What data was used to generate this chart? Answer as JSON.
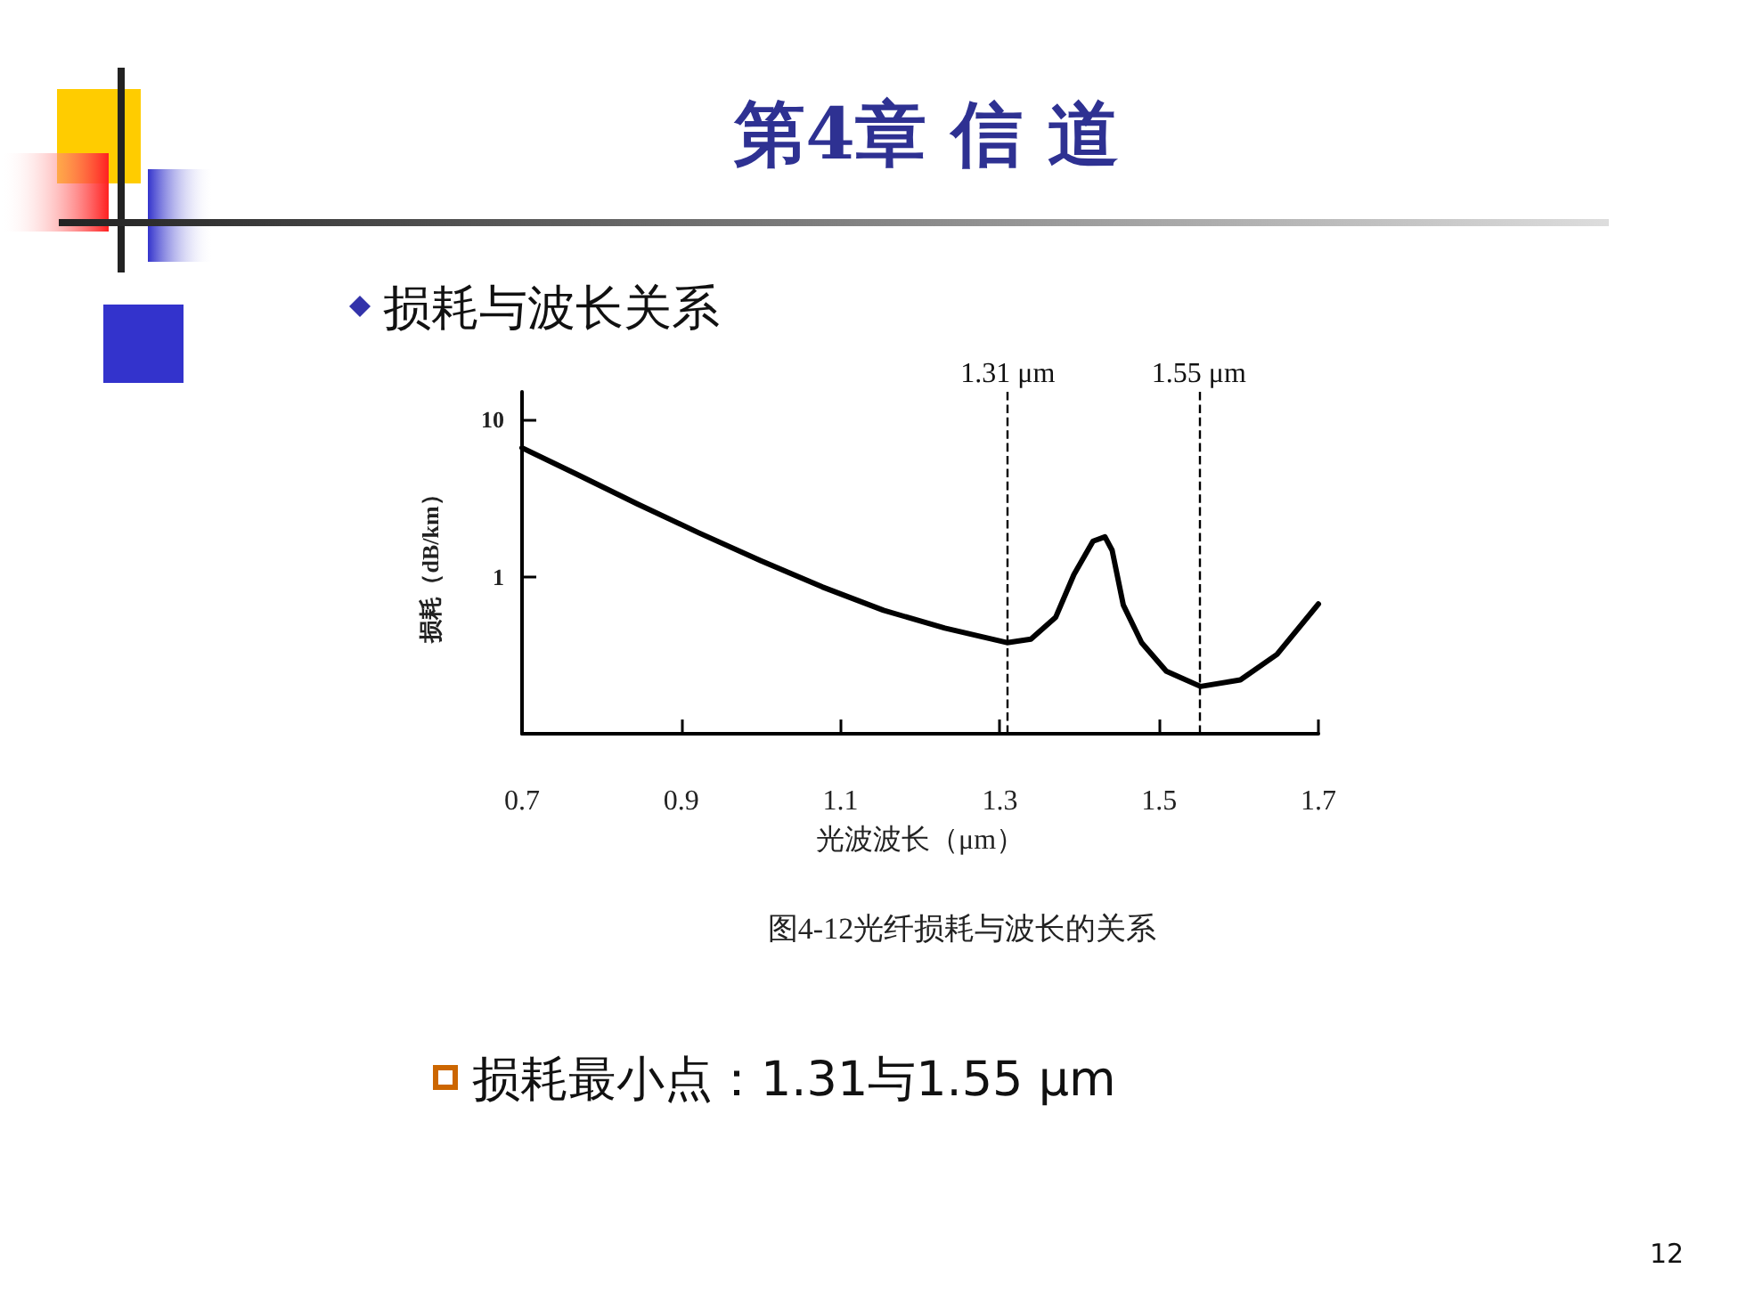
{
  "chart_data": {
    "type": "line",
    "title": "第4章  信 道",
    "subtitle": "损耗与波长关系",
    "xlabel": "光波波长（μm）",
    "ylabel": "损耗（dB/km）",
    "annotations": [
      "图4-12光纤损耗与波长的关系",
      "损耗最小点：1.31与1.55  μm",
      "12"
    ],
    "series": [
      {
        "color": "#000000",
        "x": [
          0.7,
          0.768,
          0.845,
          0.922,
          1.0,
          1.077,
          1.154,
          1.231,
          1.309,
          1.339,
          1.37,
          1.393,
          1.417,
          1.432,
          1.441,
          1.455,
          1.478,
          1.509,
          1.552,
          1.602,
          1.648,
          1.7
        ],
        "values": [
          6.6,
          4.5,
          2.9,
          1.9,
          1.26,
          0.86,
          0.61,
          0.47,
          0.38,
          0.4,
          0.55,
          1.03,
          1.68,
          1.79,
          1.47,
          0.66,
          0.38,
          0.25,
          0.2,
          0.22,
          0.32,
          0.67
        ]
      }
    ],
    "log": "y",
    "xlim": [
      0.7,
      1.7
    ],
    "xticks": [
      0.7,
      0.9,
      1.1,
      1.3,
      1.5,
      1.7
    ],
    "ylim": [
      0.1,
      15
    ],
    "yticks": [
      1,
      10
    ],
    "ref_lines": [
      {
        "axis": "x",
        "value": 1.31,
        "label": "1.31 μm",
        "line_style": "dashed"
      },
      {
        "axis": "x",
        "value": 1.55,
        "label": "1.55 μm",
        "line_style": "dashed"
      }
    ],
    "grid": false,
    "marker": "none",
    "line_style": "solid"
  }
}
